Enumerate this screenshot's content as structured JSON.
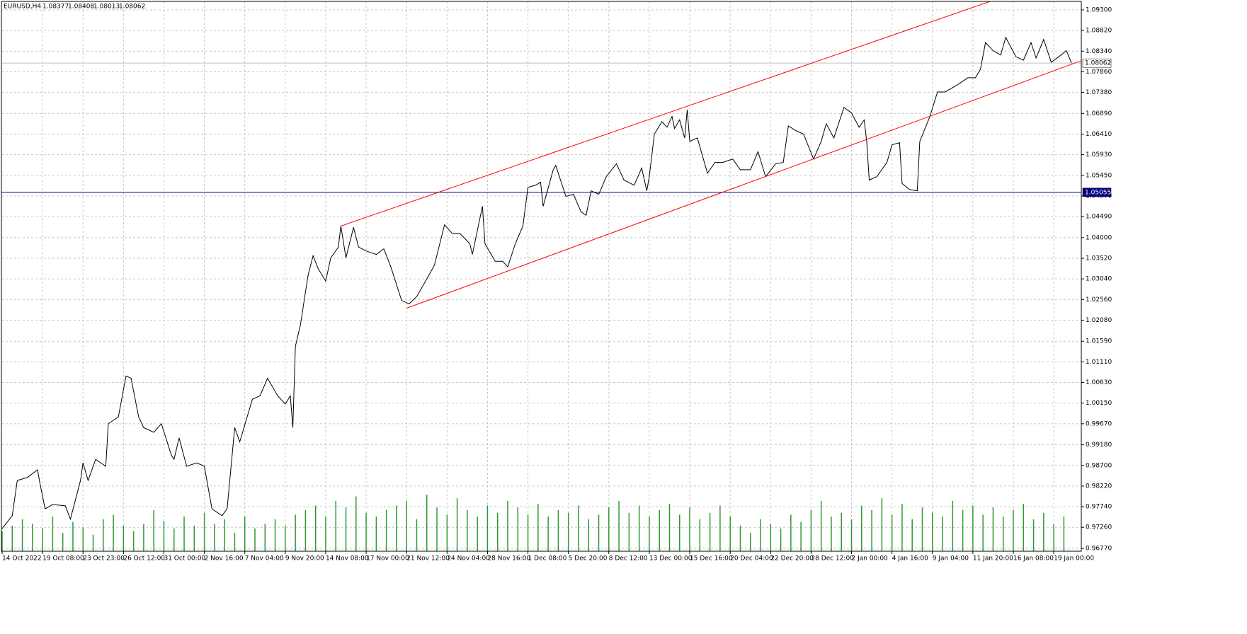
{
  "chart_data": {
    "type": "line",
    "symbol": "EURUSD,H4",
    "ohlc": [
      1.08377,
      1.08408,
      1.08013,
      1.08062
    ],
    "xlim": [
      0,
      427
    ],
    "ylim": [
      0.96704,
      1.09497
    ],
    "grid": true,
    "xticks": [
      {
        "value": 0,
        "label": "14 Oct 2022"
      },
      {
        "value": 16,
        "label": "19 Oct 08:00"
      },
      {
        "value": 32,
        "label": "23 Oct 23:00"
      },
      {
        "value": 48,
        "label": "26 Oct 12:00"
      },
      {
        "value": 64,
        "label": "31 Oct 00:00"
      },
      {
        "value": 80,
        "label": "2 Nov 16:00"
      },
      {
        "value": 96,
        "label": "7 Nov 04:00"
      },
      {
        "value": 112,
        "label": "9 Nov 20:00"
      },
      {
        "value": 128,
        "label": "14 Nov 08:00"
      },
      {
        "value": 144,
        "label": "17 Nov 00:00"
      },
      {
        "value": 160,
        "label": "21 Nov 12:00"
      },
      {
        "value": 176,
        "label": "24 Nov 04:00"
      },
      {
        "value": 192,
        "label": "28 Nov 16:00"
      },
      {
        "value": 208,
        "label": "1 Dec 08:00"
      },
      {
        "value": 224,
        "label": "5 Dec 20:00"
      },
      {
        "value": 240,
        "label": "8 Dec 12:00"
      },
      {
        "value": 256,
        "label": "13 Dec 00:00"
      },
      {
        "value": 272,
        "label": "15 Dec 16:00"
      },
      {
        "value": 288,
        "label": "20 Dec 04:00"
      },
      {
        "value": 304,
        "label": "22 Dec 20:00"
      },
      {
        "value": 320,
        "label": "28 Dec 12:00"
      },
      {
        "value": 336,
        "label": "2 Jan 00:00"
      },
      {
        "value": 352,
        "label": "4 Jan 16:00"
      },
      {
        "value": 368,
        "label": "9 Jan 04:00"
      },
      {
        "value": 384,
        "label": "11 Jan 20:00"
      },
      {
        "value": 400,
        "label": "16 Jan 08:00"
      },
      {
        "value": 416,
        "label": "19 Jan 00:00"
      }
    ],
    "yticks": [
      {
        "value": 1.093,
        "label": "1.09300"
      },
      {
        "value": 1.0882,
        "label": "1.08820"
      },
      {
        "value": 1.0834,
        "label": "1.08340"
      },
      {
        "value": 1.0786,
        "label": "1.07860"
      },
      {
        "value": 1.0738,
        "label": "1.07380"
      },
      {
        "value": 1.0689,
        "label": "1.06890"
      },
      {
        "value": 1.0641,
        "label": "1.06410"
      },
      {
        "value": 1.0593,
        "label": "1.05930"
      },
      {
        "value": 1.0545,
        "label": "1.05450"
      },
      {
        "value": 1.0497,
        "label": "1.04970"
      },
      {
        "value": 1.0449,
        "label": "1.04490"
      },
      {
        "value": 1.04,
        "label": "1.04000"
      },
      {
        "value": 1.0352,
        "label": "1.03520"
      },
      {
        "value": 1.0304,
        "label": "1.03040"
      },
      {
        "value": 1.0256,
        "label": "1.02560"
      },
      {
        "value": 1.0208,
        "label": "1.02080"
      },
      {
        "value": 1.0159,
        "label": "1.01590"
      },
      {
        "value": 1.0111,
        "label": "1.01110"
      },
      {
        "value": 1.0063,
        "label": "1.00630"
      },
      {
        "value": 1.0015,
        "label": "1.00150"
      },
      {
        "value": 0.9967,
        "label": "0.99670"
      },
      {
        "value": 0.9918,
        "label": "0.99180"
      },
      {
        "value": 0.987,
        "label": "0.98700"
      },
      {
        "value": 0.9822,
        "label": "0.98220"
      },
      {
        "value": 0.9774,
        "label": "0.97740"
      },
      {
        "value": 0.9726,
        "label": "0.97260"
      },
      {
        "value": 0.9677,
        "label": "0.96770"
      }
    ],
    "series": [
      {
        "color": "#000000",
        "x": [
          0,
          4,
          6,
          10,
          14,
          15,
          17,
          20,
          25,
          27,
          31,
          32,
          34,
          37,
          41,
          42,
          46,
          49,
          51,
          54,
          56,
          60,
          63,
          67,
          68,
          70,
          73,
          77,
          80,
          83,
          87,
          89,
          92,
          94,
          99,
          102,
          105,
          109,
          112,
          114,
          115,
          116,
          118,
          121,
          123,
          125,
          128,
          130,
          133,
          134,
          136,
          139,
          141,
          144,
          148,
          151,
          154,
          158,
          161,
          164,
          168,
          171,
          175,
          178,
          181,
          185,
          186,
          190,
          191,
          195,
          198,
          200,
          203,
          206,
          208,
          211,
          213,
          214,
          218,
          219,
          223,
          226,
          229,
          231,
          233,
          236,
          239,
          243,
          246,
          250,
          253,
          255,
          256,
          258,
          261,
          263,
          265,
          266,
          268,
          270,
          271,
          272,
          275,
          279,
          282,
          285,
          289,
          292,
          296,
          299,
          302,
          306,
          309,
          311,
          314,
          317,
          321,
          324,
          326,
          329,
          333,
          336,
          339,
          341,
          342,
          343,
          346,
          350,
          352,
          355,
          356,
          359,
          362,
          363,
          367,
          370,
          373,
          378,
          382,
          385,
          387,
          389,
          392,
          395,
          397,
          401,
          404,
          407,
          409,
          412,
          415,
          418,
          421,
          423
        ],
        "values": [
          0.9723,
          0.9753,
          0.9835,
          0.9842,
          0.986,
          0.9827,
          0.9769,
          0.9779,
          0.9776,
          0.9745,
          0.9835,
          0.9876,
          0.9835,
          0.9884,
          0.9868,
          0.9967,
          0.9983,
          1.0078,
          1.0073,
          0.9983,
          0.9958,
          0.9947,
          0.9967,
          0.9893,
          0.9884,
          0.9934,
          0.9868,
          0.9876,
          0.9868,
          0.9769,
          0.9753,
          0.9769,
          0.9958,
          0.9925,
          1.0024,
          1.0032,
          1.0073,
          1.0032,
          1.0013,
          1.0032,
          0.9958,
          1.0147,
          1.0197,
          1.0312,
          1.0358,
          1.0328,
          1.0299,
          1.0353,
          1.0378,
          1.0427,
          1.0353,
          1.0424,
          1.0378,
          1.0369,
          1.0361,
          1.0374,
          1.0328,
          1.0254,
          1.0246,
          1.0263,
          1.0304,
          1.0336,
          1.043,
          1.041,
          1.041,
          1.0386,
          1.0361,
          1.0473,
          1.0386,
          1.0345,
          1.0345,
          1.0332,
          1.0386,
          1.0427,
          1.0517,
          1.0522,
          1.0529,
          1.0473,
          1.0558,
          1.0568,
          1.0496,
          1.0501,
          1.046,
          1.0452,
          1.0509,
          1.0501,
          1.0542,
          1.0572,
          1.0534,
          1.0522,
          1.0562,
          1.0509,
          1.0542,
          1.0641,
          1.067,
          1.0657,
          1.0682,
          1.0654,
          1.0674,
          1.0632,
          1.0698,
          1.0624,
          1.0632,
          1.055,
          1.0575,
          1.0575,
          1.0583,
          1.0558,
          1.0558,
          1.06,
          1.0542,
          1.0572,
          1.0575,
          1.066,
          1.0649,
          1.0641,
          1.0583,
          1.0624,
          1.0665,
          1.0632,
          1.0703,
          1.069,
          1.0657,
          1.0674,
          1.0624,
          1.0534,
          1.0542,
          1.0575,
          1.0616,
          1.0621,
          1.0526,
          1.0512,
          1.0509,
          1.0624,
          1.0682,
          1.0739,
          1.0739,
          1.0756,
          1.0772,
          1.0772,
          1.0792,
          1.0854,
          1.0835,
          1.0825,
          1.0866,
          1.0821,
          1.0813,
          1.0854,
          1.0818,
          1.0861,
          1.0808,
          1.0821,
          1.0835,
          1.08062
        ]
      }
    ],
    "channel": [
      {
        "color": "#ff0000",
        "x": [
          134,
          391
        ],
        "values": [
          1.0427,
          1.095
        ]
      },
      {
        "color": "#ff0000",
        "x": [
          160,
          427
        ],
        "values": [
          1.0236,
          1.0812
        ]
      }
    ],
    "hlines": [
      {
        "value": 1.05055,
        "color": "#000080",
        "label_fill": "#000080",
        "label_color": "#ffffff"
      },
      {
        "value": 1.08062,
        "color": "#c0c0c0",
        "label_fill": "#ffffff",
        "label_color": "#000000"
      }
    ],
    "volume": {
      "color": "#2e9a2e",
      "x": [
        0,
        4,
        8,
        12,
        16,
        20,
        24,
        28,
        32,
        36,
        40,
        44,
        48,
        52,
        56,
        60,
        64,
        68,
        72,
        76,
        80,
        84,
        88,
        92,
        96,
        100,
        104,
        108,
        112,
        116,
        120,
        124,
        128,
        132,
        136,
        140,
        144,
        148,
        152,
        156,
        160,
        164,
        168,
        172,
        176,
        180,
        184,
        188,
        192,
        196,
        200,
        204,
        208,
        212,
        216,
        220,
        224,
        228,
        232,
        236,
        240,
        244,
        248,
        252,
        256,
        260,
        264,
        268,
        272,
        276,
        280,
        284,
        288,
        292,
        296,
        300,
        304,
        308,
        312,
        316,
        320,
        324,
        328,
        332,
        336,
        340,
        344,
        348,
        352,
        356,
        360,
        364,
        368,
        372,
        376,
        380,
        384,
        388,
        392,
        396,
        400,
        404,
        408,
        412,
        416,
        420
      ],
      "values": [
        22,
        28,
        35,
        30,
        25,
        38,
        20,
        32,
        26,
        18,
        35,
        40,
        28,
        22,
        30,
        45,
        33,
        25,
        38,
        28,
        42,
        30,
        35,
        20,
        38,
        25,
        30,
        35,
        28,
        40,
        45,
        50,
        38,
        55,
        48,
        60,
        42,
        38,
        45,
        50,
        55,
        35,
        62,
        48,
        40,
        58,
        45,
        38,
        50,
        42,
        55,
        48,
        40,
        52,
        38,
        45,
        42,
        50,
        35,
        40,
        48,
        55,
        42,
        50,
        38,
        45,
        52,
        40,
        48,
        35,
        42,
        50,
        38,
        28,
        20,
        35,
        30,
        25,
        40,
        32,
        45,
        55,
        38,
        42,
        35,
        50,
        45,
        58,
        40,
        52,
        35,
        48,
        42,
        38,
        55,
        45,
        50,
        40,
        48,
        38,
        45,
        52,
        35,
        42,
        30,
        38
      ]
    }
  }
}
